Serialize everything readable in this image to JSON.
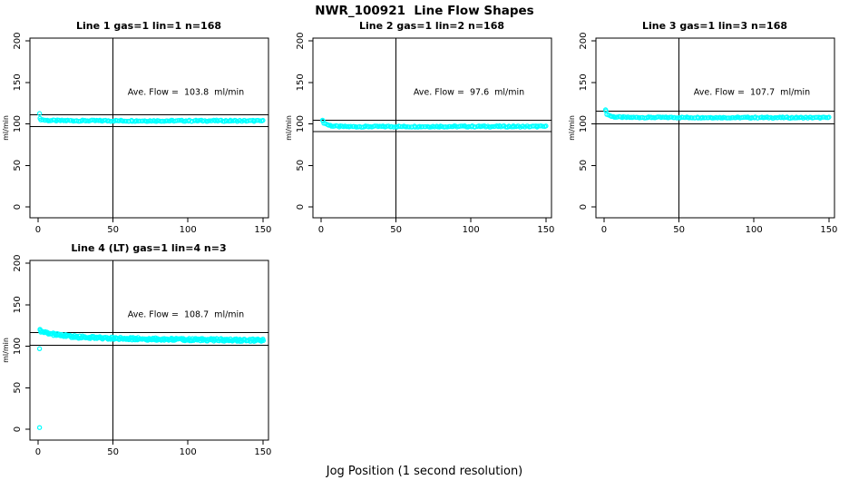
{
  "figure": {
    "title": "NWR_100921  Line Flow Shapes",
    "xlabel": "Jog Position (1 second resolution)",
    "background": "#FFFFFF",
    "point_color": "#00FFFF",
    "line_color": "#000000",
    "text_color": "#000000"
  },
  "chart_data": [
    {
      "type": "scatter",
      "title": "Line 1 gas=1 lin=1 n=168",
      "annotation": "Ave. Flow =  103.8  ml/min",
      "ave_flow_ml_min": 103.8,
      "n": 168,
      "ylabel": "ml/min",
      "x_ticks": [
        0,
        50,
        100,
        150
      ],
      "y_ticks": [
        0,
        50,
        100,
        150,
        200
      ],
      "xlim": [
        -5.4,
        153.7
      ],
      "ylim": [
        -13.1,
        203.3
      ],
      "vline_x": 50,
      "hlines": [
        111.1,
        96.5
      ],
      "x_start": 1,
      "x_end": 150,
      "band_halfwidth": 0.8,
      "layers": 1,
      "trend": [
        [
          1,
          106
        ],
        [
          3,
          104.8
        ],
        [
          6,
          104.2
        ],
        [
          10,
          104
        ],
        [
          40,
          103.8
        ],
        [
          80,
          103.7
        ],
        [
          120,
          103.8
        ],
        [
          150,
          103.6
        ]
      ],
      "outliers": [
        [
          1,
          112.5
        ]
      ]
    },
    {
      "type": "scatter",
      "title": "Line 2 gas=1 lin=2 n=168",
      "annotation": "Ave. Flow =  97.6  ml/min",
      "ave_flow_ml_min": 97.6,
      "n": 168,
      "ylabel": "ml/min",
      "x_ticks": [
        0,
        50,
        100,
        150
      ],
      "y_ticks": [
        0,
        50,
        100,
        150,
        200
      ],
      "xlim": [
        -5.4,
        153.7
      ],
      "ylim": [
        -13.1,
        203.3
      ],
      "vline_x": 50,
      "hlines": [
        104.4,
        90.8
      ],
      "x_start": 1,
      "x_end": 150,
      "band_halfwidth": 0.8,
      "layers": 1,
      "trend": [
        [
          1,
          103
        ],
        [
          2,
          101.5
        ],
        [
          3,
          100
        ],
        [
          5,
          98.5
        ],
        [
          8,
          97.3
        ],
        [
          12,
          96.8
        ],
        [
          20,
          96.7
        ],
        [
          80,
          96.9
        ],
        [
          150,
          96.9
        ]
      ],
      "outliers": [
        [
          1,
          104.5
        ]
      ]
    },
    {
      "type": "scatter",
      "title": "Line 3 gas=1 lin=3 n=168",
      "annotation": "Ave. Flow =  107.7  ml/min",
      "ave_flow_ml_min": 107.7,
      "n": 168,
      "ylabel": "ml/min",
      "x_ticks": [
        0,
        50,
        100,
        150
      ],
      "y_ticks": [
        0,
        50,
        100,
        150,
        200
      ],
      "xlim": [
        -5.4,
        153.7
      ],
      "ylim": [
        -13.1,
        203.3
      ],
      "vline_x": 50,
      "hlines": [
        115.2,
        100.2
      ],
      "x_start": 1,
      "x_end": 150,
      "band_halfwidth": 0.7,
      "layers": 1,
      "trend": [
        [
          1,
          115
        ],
        [
          2,
          112
        ],
        [
          3,
          110.5
        ],
        [
          5,
          109
        ],
        [
          8,
          108.2
        ],
        [
          15,
          107.8
        ],
        [
          80,
          107.6
        ],
        [
          150,
          107.5
        ]
      ],
      "outliers": [
        [
          1,
          117
        ]
      ]
    },
    {
      "type": "scatter",
      "title": "Line 4 (LT) gas=1 lin=4 n=3",
      "annotation": "Ave. Flow =  108.7  ml/min",
      "ave_flow_ml_min": 108.7,
      "n": 3,
      "ylabel": "ml/min",
      "x_ticks": [
        0,
        50,
        100,
        150
      ],
      "y_ticks": [
        0,
        50,
        100,
        150,
        200
      ],
      "xlim": [
        -5.4,
        153.7
      ],
      "ylim": [
        -13.1,
        203.3
      ],
      "vline_x": 50,
      "hlines": [
        116.3,
        101.1
      ],
      "x_start": 1,
      "x_end": 150,
      "band_halfwidth": 1.6,
      "layers": 2,
      "trend": [
        [
          1,
          119
        ],
        [
          3,
          117.5
        ],
        [
          6,
          116
        ],
        [
          10,
          114.5
        ],
        [
          15,
          113
        ],
        [
          20,
          112
        ],
        [
          30,
          110.8
        ],
        [
          40,
          110
        ],
        [
          50,
          109.5
        ],
        [
          70,
          108.8
        ],
        [
          90,
          108.2
        ],
        [
          110,
          107.8
        ],
        [
          130,
          107.5
        ],
        [
          150,
          107.2
        ]
      ],
      "outliers": [
        [
          1,
          2
        ],
        [
          1,
          97
        ]
      ]
    }
  ]
}
